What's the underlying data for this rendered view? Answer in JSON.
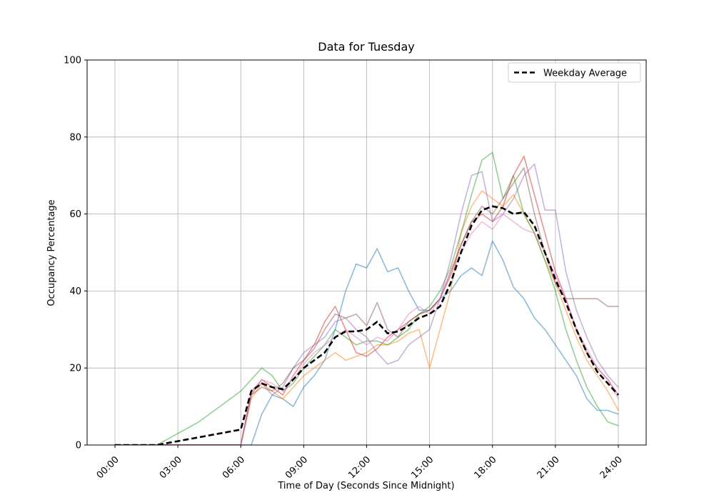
{
  "chart_data": {
    "type": "line",
    "title": "Data for Tuesday",
    "xlabel": "Time of Day (Seconds Since Midnight)",
    "ylabel": "Occupancy Percentage",
    "xlim": [
      0,
      24
    ],
    "ylim": [
      0,
      100
    ],
    "grid": true,
    "xticks": [
      {
        "v": 0,
        "label": "00:00"
      },
      {
        "v": 3,
        "label": "03:00"
      },
      {
        "v": 6,
        "label": "06:00"
      },
      {
        "v": 9,
        "label": "09:00"
      },
      {
        "v": 12,
        "label": "12:00"
      },
      {
        "v": 15,
        "label": "15:00"
      },
      {
        "v": 18,
        "label": "18:00"
      },
      {
        "v": 21,
        "label": "21:00"
      },
      {
        "v": 24,
        "label": "24:00"
      }
    ],
    "yticks": [
      {
        "v": 0,
        "label": "0"
      },
      {
        "v": 20,
        "label": "20"
      },
      {
        "v": 40,
        "label": "40"
      },
      {
        "v": 60,
        "label": "60"
      },
      {
        "v": 80,
        "label": "80"
      },
      {
        "v": 100,
        "label": "100"
      }
    ],
    "x_hours": [
      0,
      0.5,
      1,
      1.5,
      2,
      2.5,
      3,
      3.5,
      4,
      4.5,
      5,
      5.5,
      6,
      6.5,
      7,
      7.5,
      8,
      8.5,
      9,
      9.5,
      10,
      10.5,
      11,
      11.5,
      12,
      12.5,
      13,
      13.5,
      14,
      14.5,
      15,
      15.5,
      16,
      16.5,
      17,
      17.5,
      18,
      18.5,
      19,
      19.5,
      20,
      20.5,
      21,
      21.5,
      22,
      22.5,
      23,
      23.5,
      24
    ],
    "series_opacity": 0.5,
    "series": [
      {
        "id": "day-line-1",
        "color": "#1f77b4",
        "values": [
          0,
          0,
          0,
          0,
          0,
          0,
          0,
          0,
          0,
          0,
          0,
          0,
          0,
          0,
          8,
          13,
          12,
          10,
          15,
          18,
          22,
          30,
          40,
          47,
          46,
          51,
          45,
          46,
          40,
          35,
          35,
          38,
          40,
          44,
          46,
          44,
          53,
          48,
          41,
          38,
          33,
          30,
          26,
          22,
          18,
          12,
          9,
          9,
          8
        ]
      },
      {
        "id": "day-line-2",
        "color": "#ff7f0e",
        "values": [
          0,
          0,
          0,
          0,
          0,
          0,
          0,
          0,
          0,
          0,
          0,
          0,
          0,
          12,
          16,
          14,
          12,
          15,
          18,
          20,
          22,
          24,
          22,
          23,
          24,
          26,
          26,
          27,
          29,
          30,
          20,
          30,
          40,
          55,
          62,
          66,
          64,
          62,
          65,
          60,
          55,
          48,
          42,
          35,
          28,
          22,
          18,
          14,
          9
        ]
      },
      {
        "id": "day-line-3",
        "color": "#2ca02c",
        "values": [
          0,
          0,
          0,
          0,
          0,
          1.5,
          3,
          4.5,
          6,
          8,
          10,
          12,
          14,
          17,
          20,
          18,
          14,
          16,
          20,
          23,
          26,
          30,
          28,
          26,
          27,
          27,
          26,
          28,
          30,
          34,
          36,
          40,
          46,
          55,
          65,
          74,
          76,
          64,
          70,
          60,
          55,
          48,
          40,
          30,
          22,
          15,
          10,
          6,
          5
        ]
      },
      {
        "id": "day-line-4",
        "color": "#d62728",
        "values": [
          0,
          0,
          0,
          0,
          0,
          0,
          0,
          0,
          0,
          0,
          0,
          0,
          0,
          13,
          17,
          15,
          13,
          18,
          22,
          26,
          32,
          36,
          30,
          24,
          23,
          25,
          28,
          30,
          32,
          34,
          35,
          38,
          45,
          52,
          58,
          60,
          58,
          62,
          70,
          75,
          65,
          55,
          45,
          38,
          30,
          24,
          20,
          17,
          13
        ]
      },
      {
        "id": "day-line-5",
        "color": "#9467bd",
        "values": [
          0,
          0,
          0,
          0,
          0,
          0,
          0,
          0,
          0,
          0,
          0,
          0,
          0,
          14,
          16,
          13,
          15,
          20,
          24,
          26,
          28,
          32,
          33,
          30,
          28,
          24,
          21,
          22,
          26,
          28,
          30,
          38,
          48,
          60,
          70,
          71,
          58,
          60,
          64,
          70,
          73,
          61,
          61,
          45,
          35,
          28,
          22,
          18,
          15
        ]
      },
      {
        "id": "day-line-6",
        "color": "#8c564b",
        "values": [
          0,
          0,
          0,
          0,
          0,
          0,
          0,
          0,
          0,
          0,
          0,
          0,
          0,
          13,
          15,
          14,
          16,
          20,
          22,
          25,
          30,
          34,
          33,
          34,
          31,
          37,
          30,
          28,
          32,
          34,
          35,
          38,
          44,
          52,
          58,
          62,
          60,
          64,
          68,
          72,
          60,
          50,
          42,
          38,
          38,
          38,
          38,
          36,
          36
        ]
      },
      {
        "id": "day-line-7",
        "color": "#e377c2",
        "values": [
          0,
          0,
          0,
          0,
          0,
          0,
          0,
          0,
          0,
          0,
          0,
          0,
          0,
          14,
          17,
          16,
          14,
          17,
          21,
          24,
          26,
          28,
          30,
          28,
          26,
          28,
          27,
          30,
          34,
          36,
          34,
          38,
          44,
          50,
          55,
          58,
          56,
          60,
          58,
          56,
          55,
          50,
          44,
          38,
          30,
          25,
          20,
          17,
          12
        ]
      }
    ],
    "average_series": {
      "name": "Weekday Average",
      "color": "#000000",
      "dash": [
        8,
        4
      ],
      "values": [
        0,
        0,
        0,
        0,
        0,
        0.5,
        1,
        1.5,
        2,
        2.5,
        3,
        3.5,
        4,
        14,
        16,
        15,
        14.5,
        17,
        20,
        22,
        24,
        28,
        29.5,
        29.5,
        30,
        32,
        29,
        29.5,
        31,
        33,
        34,
        36,
        42,
        50,
        57,
        61,
        62,
        61.5,
        60,
        60.5,
        57,
        50,
        43,
        37,
        30,
        24,
        19,
        16,
        13
      ]
    },
    "legend": {
      "label": "Weekday Average",
      "position": "upper right"
    }
  }
}
